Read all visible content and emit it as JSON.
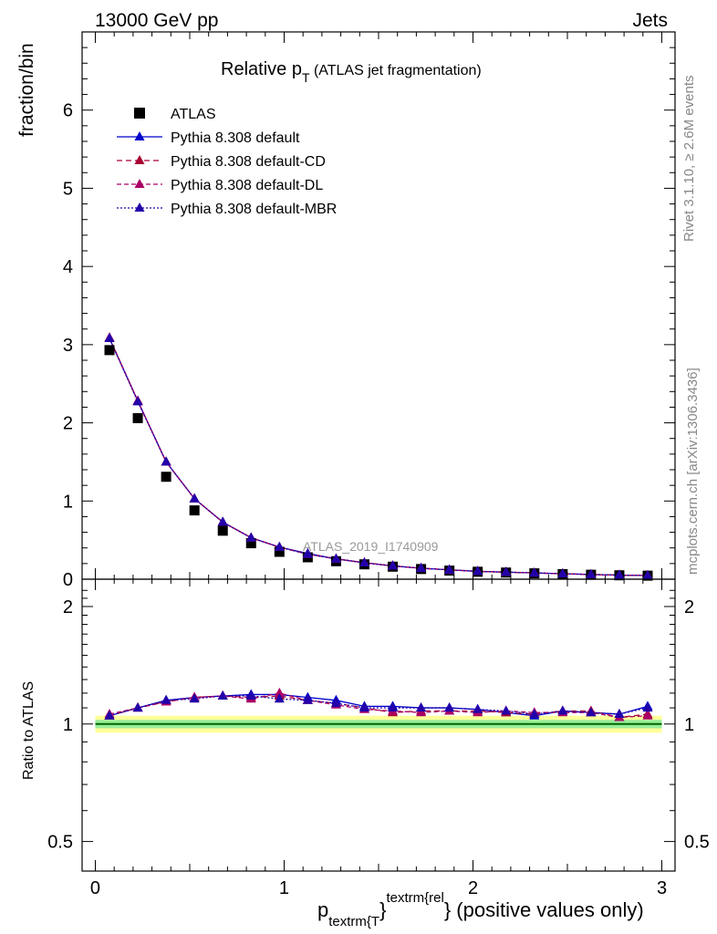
{
  "header": {
    "left": "13000 GeV pp",
    "right": "Jets"
  },
  "side": {
    "rivet": "Rivet 3.1.10, ≥ 2.6M events",
    "mcplots": "mcplots.cern.ch [arXiv:1306.3436]"
  },
  "title": {
    "main": "Relative p",
    "sub": "T",
    "rest": " (ATLAS jet fragmentation)"
  },
  "watermark": "ATLAS_2019_I1740909",
  "xaxis": {
    "label_p": "p",
    "label_sub": "textrm{T",
    "label_brace": "}",
    "label_sup": "textrm{rel",
    "label_rest": "} (positive values only)",
    "ticks": [
      "0",
      "1",
      "2",
      "3"
    ]
  },
  "legend": [
    {
      "label": "ATLAS"
    },
    {
      "label": "Pythia 8.308 default"
    },
    {
      "label": "Pythia 8.308 default-CD"
    },
    {
      "label": "Pythia 8.308 default-DL"
    },
    {
      "label": "Pythia 8.308 default-MBR"
    }
  ],
  "colors": {
    "data": "#000000",
    "default": "#0000cc",
    "cd": "#aa0033",
    "dl": "#aa0066",
    "mbr": "#2200aa",
    "band_outer": "#ffff99",
    "band_inner": "#99ee99",
    "ratio_line": "#006600"
  },
  "chart_data": [
    {
      "type": "scatter",
      "ylabel": "fraction/bin",
      "xlim": [
        -0.07,
        3.07
      ],
      "ylim": [
        0,
        7
      ],
      "yticks": [
        "0",
        "1",
        "2",
        "3",
        "4",
        "5",
        "6"
      ],
      "x": [
        0.075,
        0.225,
        0.375,
        0.525,
        0.675,
        0.825,
        0.975,
        1.125,
        1.275,
        1.425,
        1.575,
        1.725,
        1.875,
        2.025,
        2.175,
        2.325,
        2.475,
        2.625,
        2.775,
        2.925
      ],
      "series": [
        {
          "name": "ATLAS",
          "values": [
            2.93,
            2.06,
            1.31,
            0.88,
            0.62,
            0.46,
            0.35,
            0.28,
            0.23,
            0.19,
            0.16,
            0.13,
            0.11,
            0.095,
            0.085,
            0.075,
            0.065,
            0.057,
            0.05,
            0.045
          ]
        },
        {
          "name": "Pythia 8.308 default",
          "values": [
            3.08,
            2.28,
            1.5,
            1.03,
            0.73,
            0.53,
            0.41,
            0.33,
            0.26,
            0.21,
            0.17,
            0.14,
            0.12,
            0.1,
            0.09,
            0.08,
            0.07,
            0.06,
            0.052,
            0.047
          ]
        },
        {
          "name": "Pythia 8.308 default-CD",
          "values": [
            3.08,
            2.28,
            1.5,
            1.03,
            0.73,
            0.53,
            0.41,
            0.32,
            0.26,
            0.21,
            0.17,
            0.14,
            0.12,
            0.1,
            0.09,
            0.08,
            0.07,
            0.06,
            0.052,
            0.047
          ]
        },
        {
          "name": "Pythia 8.308 default-DL",
          "values": [
            3.09,
            2.28,
            1.5,
            1.03,
            0.73,
            0.53,
            0.41,
            0.32,
            0.26,
            0.21,
            0.17,
            0.14,
            0.12,
            0.1,
            0.09,
            0.08,
            0.07,
            0.06,
            0.052,
            0.047
          ]
        },
        {
          "name": "Pythia 8.308 default-MBR",
          "values": [
            3.08,
            2.27,
            1.5,
            1.03,
            0.73,
            0.53,
            0.41,
            0.32,
            0.26,
            0.21,
            0.17,
            0.14,
            0.12,
            0.1,
            0.09,
            0.08,
            0.07,
            0.06,
            0.052,
            0.047
          ]
        }
      ]
    },
    {
      "type": "line",
      "ylabel": "Ratio to ATLAS",
      "xlim": [
        -0.07,
        3.07
      ],
      "ylim": [
        0.42,
        2.35
      ],
      "log_y": true,
      "yticks": [
        {
          "value": 0.5,
          "label": "0.5"
        },
        {
          "value": 1,
          "label": "1"
        },
        {
          "value": 2,
          "label": "2"
        }
      ],
      "x": [
        0.075,
        0.225,
        0.375,
        0.525,
        0.675,
        0.825,
        0.975,
        1.125,
        1.275,
        1.425,
        1.575,
        1.725,
        1.875,
        2.025,
        2.175,
        2.325,
        2.475,
        2.625,
        2.775,
        2.925
      ],
      "band": {
        "outer_lo": 0.95,
        "outer_hi": 1.05,
        "inner_lo": 0.975,
        "inner_hi": 1.025
      },
      "series": [
        {
          "name": "Pythia 8.308 default",
          "values": [
            1.05,
            1.1,
            1.15,
            1.17,
            1.18,
            1.19,
            1.19,
            1.17,
            1.15,
            1.11,
            1.11,
            1.1,
            1.1,
            1.09,
            1.07,
            1.05,
            1.08,
            1.07,
            1.06,
            1.11
          ]
        },
        {
          "name": "Pythia 8.308 default-CD",
          "values": [
            1.05,
            1.1,
            1.14,
            1.17,
            1.18,
            1.17,
            1.18,
            1.15,
            1.13,
            1.1,
            1.07,
            1.08,
            1.08,
            1.08,
            1.07,
            1.06,
            1.08,
            1.08,
            1.04,
            1.06
          ]
        },
        {
          "name": "Pythia 8.308 default-DL",
          "values": [
            1.06,
            1.1,
            1.14,
            1.17,
            1.18,
            1.16,
            1.2,
            1.15,
            1.12,
            1.09,
            1.08,
            1.07,
            1.08,
            1.07,
            1.08,
            1.07,
            1.07,
            1.07,
            1.04,
            1.05
          ]
        },
        {
          "name": "Pythia 8.308 default-MBR",
          "values": [
            1.05,
            1.1,
            1.15,
            1.16,
            1.18,
            1.18,
            1.16,
            1.15,
            1.13,
            1.1,
            1.1,
            1.1,
            1.1,
            1.09,
            1.08,
            1.06,
            1.08,
            1.07,
            1.06,
            1.1
          ]
        }
      ]
    }
  ]
}
